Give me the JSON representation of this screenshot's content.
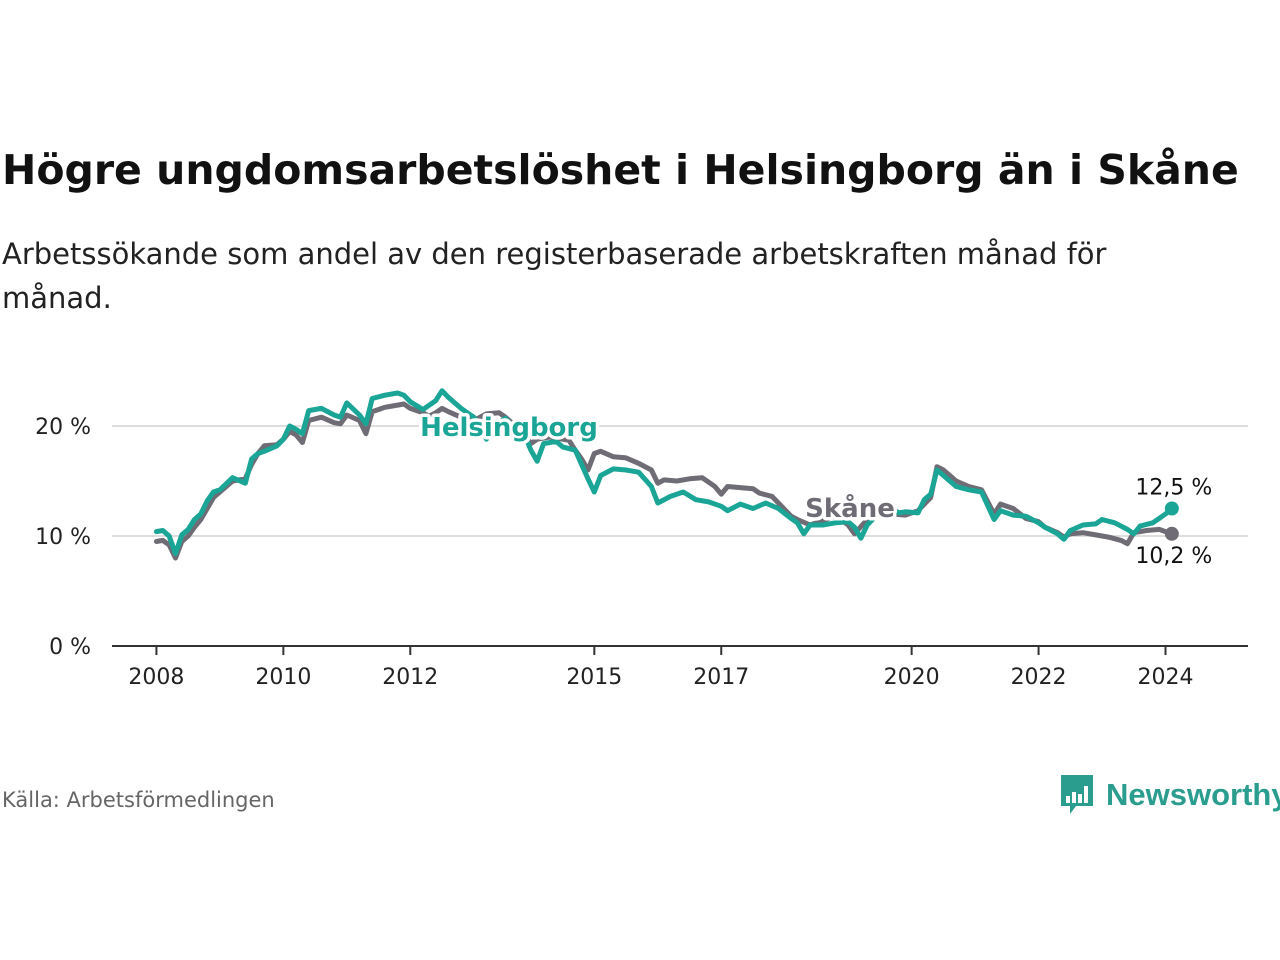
{
  "title": "Högre ungdomsarbetslöshet i Helsingborg än i Skåne",
  "subtitle": "Arbetssökande som andel av den registerbaserade arbetskraften månad för månad.",
  "source": "Källa: Arbetsförmedlingen",
  "brand": "Newsworthy",
  "colors": {
    "helsingborg": "#1aa596",
    "skane": "#6f6c75",
    "grid": "#dddddd",
    "axis": "#333333"
  },
  "chart_data": {
    "type": "line",
    "title": "Högre ungdomsarbetslöshet i Helsingborg än i Skåne",
    "xlabel": "",
    "ylabel": "",
    "ylim": [
      0,
      25
    ],
    "xlim": [
      2007.3,
      2025.2
    ],
    "x_ticks": [
      {
        "value": 2008,
        "label": "2008"
      },
      {
        "value": 2010,
        "label": "2010"
      },
      {
        "value": 2012,
        "label": "2012"
      },
      {
        "value": 2014.9,
        "label": "2015"
      },
      {
        "value": 2016.9,
        "label": "2017"
      },
      {
        "value": 2019.9,
        "label": "2020"
      },
      {
        "value": 2021.9,
        "label": "2022"
      },
      {
        "value": 2023.9,
        "label": "2024"
      }
    ],
    "y_ticks": [
      {
        "value": 0,
        "label": "0 %"
      },
      {
        "value": 10,
        "label": "10 %"
      },
      {
        "value": 20,
        "label": "20 %"
      }
    ],
    "series": [
      {
        "name": "Skåne",
        "label": "Skåne",
        "end_label": "10,2 %",
        "points": [
          [
            2008.0,
            9.5
          ],
          [
            2008.1,
            9.6
          ],
          [
            2008.2,
            9.2
          ],
          [
            2008.3,
            8.0
          ],
          [
            2008.4,
            9.5
          ],
          [
            2008.5,
            10.0
          ],
          [
            2008.6,
            10.8
          ],
          [
            2008.7,
            11.5
          ],
          [
            2008.8,
            12.5
          ],
          [
            2008.9,
            13.5
          ],
          [
            2009.0,
            14.0
          ],
          [
            2009.2,
            15.0
          ],
          [
            2009.4,
            15.2
          ],
          [
            2009.5,
            16.5
          ],
          [
            2009.6,
            17.5
          ],
          [
            2009.7,
            18.2
          ],
          [
            2009.9,
            18.3
          ],
          [
            2010.0,
            18.8
          ],
          [
            2010.1,
            19.5
          ],
          [
            2010.2,
            19.2
          ],
          [
            2010.3,
            18.5
          ],
          [
            2010.4,
            20.5
          ],
          [
            2010.6,
            20.8
          ],
          [
            2010.8,
            20.3
          ],
          [
            2010.9,
            20.2
          ],
          [
            2011.0,
            21.0
          ],
          [
            2011.2,
            20.5
          ],
          [
            2011.3,
            19.3
          ],
          [
            2011.4,
            21.3
          ],
          [
            2011.6,
            21.7
          ],
          [
            2011.8,
            21.9
          ],
          [
            2011.9,
            22.0
          ],
          [
            2012.0,
            21.6
          ],
          [
            2012.2,
            21.2
          ],
          [
            2012.3,
            20.9
          ],
          [
            2012.4,
            21.2
          ],
          [
            2012.5,
            21.6
          ],
          [
            2012.6,
            21.3
          ],
          [
            2012.8,
            20.8
          ],
          [
            2013.0,
            20.5
          ],
          [
            2013.1,
            20.8
          ],
          [
            2013.2,
            21.1
          ],
          [
            2013.4,
            21.2
          ],
          [
            2013.5,
            20.8
          ],
          [
            2013.6,
            20.3
          ],
          [
            2013.8,
            19.2
          ],
          [
            2013.9,
            18.4
          ],
          [
            2014.0,
            18.8
          ],
          [
            2014.2,
            19.0
          ],
          [
            2014.4,
            18.8
          ],
          [
            2014.5,
            18.7
          ],
          [
            2014.6,
            17.8
          ],
          [
            2014.7,
            17.0
          ],
          [
            2014.8,
            16.0
          ],
          [
            2014.9,
            17.5
          ],
          [
            2015.0,
            17.7
          ],
          [
            2015.2,
            17.2
          ],
          [
            2015.4,
            17.1
          ],
          [
            2015.6,
            16.6
          ],
          [
            2015.8,
            16.0
          ],
          [
            2015.9,
            14.8
          ],
          [
            2016.0,
            15.1
          ],
          [
            2016.2,
            15.0
          ],
          [
            2016.4,
            15.2
          ],
          [
            2016.6,
            15.3
          ],
          [
            2016.8,
            14.5
          ],
          [
            2016.9,
            13.8
          ],
          [
            2017.0,
            14.5
          ],
          [
            2017.2,
            14.4
          ],
          [
            2017.4,
            14.3
          ],
          [
            2017.5,
            13.9
          ],
          [
            2017.7,
            13.6
          ],
          [
            2017.8,
            13.0
          ],
          [
            2018.0,
            11.8
          ],
          [
            2018.1,
            11.5
          ],
          [
            2018.3,
            11.0
          ],
          [
            2018.5,
            11.4
          ],
          [
            2018.7,
            11.8
          ],
          [
            2018.9,
            11.0
          ],
          [
            2019.0,
            10.2
          ],
          [
            2019.2,
            11.5
          ],
          [
            2019.4,
            12.0
          ],
          [
            2019.6,
            12.0
          ],
          [
            2019.8,
            11.9
          ],
          [
            2020.0,
            12.3
          ],
          [
            2020.2,
            13.5
          ],
          [
            2020.3,
            16.3
          ],
          [
            2020.4,
            16.0
          ],
          [
            2020.6,
            15.0
          ],
          [
            2020.8,
            14.5
          ],
          [
            2021.0,
            14.2
          ],
          [
            2021.2,
            12.0
          ],
          [
            2021.3,
            12.9
          ],
          [
            2021.5,
            12.5
          ],
          [
            2021.7,
            11.6
          ],
          [
            2021.9,
            11.3
          ],
          [
            2022.0,
            10.8
          ],
          [
            2022.2,
            10.3
          ],
          [
            2022.3,
            9.9
          ],
          [
            2022.4,
            10.2
          ],
          [
            2022.6,
            10.3
          ],
          [
            2022.8,
            10.1
          ],
          [
            2023.0,
            9.9
          ],
          [
            2023.2,
            9.6
          ],
          [
            2023.3,
            9.3
          ],
          [
            2023.4,
            10.3
          ],
          [
            2023.6,
            10.5
          ],
          [
            2023.8,
            10.6
          ],
          [
            2023.9,
            10.4
          ],
          [
            2024.0,
            10.2
          ]
        ]
      },
      {
        "name": "Helsingborg",
        "label": "Helsingborg",
        "end_label": "12,5 %",
        "points": [
          [
            2008.0,
            10.4
          ],
          [
            2008.1,
            10.5
          ],
          [
            2008.2,
            10.0
          ],
          [
            2008.3,
            8.4
          ],
          [
            2008.4,
            10.1
          ],
          [
            2008.5,
            10.6
          ],
          [
            2008.6,
            11.5
          ],
          [
            2008.7,
            12.0
          ],
          [
            2008.8,
            13.2
          ],
          [
            2008.9,
            14.0
          ],
          [
            2009.0,
            14.2
          ],
          [
            2009.2,
            15.3
          ],
          [
            2009.4,
            14.8
          ],
          [
            2009.5,
            17.0
          ],
          [
            2009.6,
            17.5
          ],
          [
            2009.7,
            17.7
          ],
          [
            2009.9,
            18.2
          ],
          [
            2010.0,
            18.8
          ],
          [
            2010.1,
            20.0
          ],
          [
            2010.2,
            19.7
          ],
          [
            2010.3,
            19.3
          ],
          [
            2010.4,
            21.4
          ],
          [
            2010.6,
            21.6
          ],
          [
            2010.8,
            21.0
          ],
          [
            2010.9,
            20.8
          ],
          [
            2011.0,
            22.1
          ],
          [
            2011.2,
            21.0
          ],
          [
            2011.3,
            20.2
          ],
          [
            2011.4,
            22.5
          ],
          [
            2011.6,
            22.8
          ],
          [
            2011.8,
            23.0
          ],
          [
            2011.9,
            22.8
          ],
          [
            2012.0,
            22.2
          ],
          [
            2012.2,
            21.5
          ],
          [
            2012.4,
            22.3
          ],
          [
            2012.5,
            23.2
          ],
          [
            2012.6,
            22.6
          ],
          [
            2012.8,
            21.6
          ],
          [
            2013.0,
            20.8
          ],
          [
            2013.1,
            20.0
          ],
          [
            2013.2,
            18.8
          ],
          [
            2013.3,
            20.0
          ],
          [
            2013.5,
            20.7
          ],
          [
            2013.6,
            20.0
          ],
          [
            2013.8,
            19.2
          ],
          [
            2013.9,
            17.8
          ],
          [
            2014.0,
            16.8
          ],
          [
            2014.1,
            18.4
          ],
          [
            2014.3,
            18.6
          ],
          [
            2014.4,
            18.1
          ],
          [
            2014.6,
            17.8
          ],
          [
            2014.7,
            16.5
          ],
          [
            2014.8,
            15.2
          ],
          [
            2014.9,
            14.0
          ],
          [
            2015.0,
            15.5
          ],
          [
            2015.2,
            16.1
          ],
          [
            2015.4,
            16.0
          ],
          [
            2015.6,
            15.8
          ],
          [
            2015.8,
            14.5
          ],
          [
            2015.9,
            13.0
          ],
          [
            2016.1,
            13.6
          ],
          [
            2016.3,
            14.0
          ],
          [
            2016.5,
            13.3
          ],
          [
            2016.7,
            13.1
          ],
          [
            2016.9,
            12.7
          ],
          [
            2017.0,
            12.3
          ],
          [
            2017.2,
            12.9
          ],
          [
            2017.4,
            12.5
          ],
          [
            2017.6,
            13.0
          ],
          [
            2017.8,
            12.5
          ],
          [
            2018.0,
            11.6
          ],
          [
            2018.1,
            11.2
          ],
          [
            2018.2,
            10.2
          ],
          [
            2018.3,
            11.0
          ],
          [
            2018.5,
            11.0
          ],
          [
            2018.7,
            11.2
          ],
          [
            2018.9,
            11.3
          ],
          [
            2019.0,
            10.8
          ],
          [
            2019.1,
            9.8
          ],
          [
            2019.2,
            11.0
          ],
          [
            2019.5,
            12.8
          ],
          [
            2019.7,
            12.1
          ],
          [
            2019.8,
            12.2
          ],
          [
            2020.0,
            12.1
          ],
          [
            2020.1,
            13.3
          ],
          [
            2020.2,
            13.8
          ],
          [
            2020.3,
            16.0
          ],
          [
            2020.4,
            15.5
          ],
          [
            2020.6,
            14.5
          ],
          [
            2020.8,
            14.2
          ],
          [
            2021.0,
            14.0
          ],
          [
            2021.2,
            11.5
          ],
          [
            2021.3,
            12.3
          ],
          [
            2021.5,
            11.9
          ],
          [
            2021.7,
            11.8
          ],
          [
            2021.9,
            11.2
          ],
          [
            2022.0,
            10.8
          ],
          [
            2022.2,
            10.2
          ],
          [
            2022.3,
            9.7
          ],
          [
            2022.4,
            10.5
          ],
          [
            2022.6,
            11.0
          ],
          [
            2022.8,
            11.1
          ],
          [
            2022.9,
            11.5
          ],
          [
            2023.1,
            11.2
          ],
          [
            2023.3,
            10.6
          ],
          [
            2023.4,
            10.2
          ],
          [
            2023.5,
            10.9
          ],
          [
            2023.7,
            11.2
          ],
          [
            2023.8,
            11.6
          ],
          [
            2023.9,
            12.0
          ],
          [
            2024.0,
            12.5
          ]
        ]
      }
    ]
  }
}
